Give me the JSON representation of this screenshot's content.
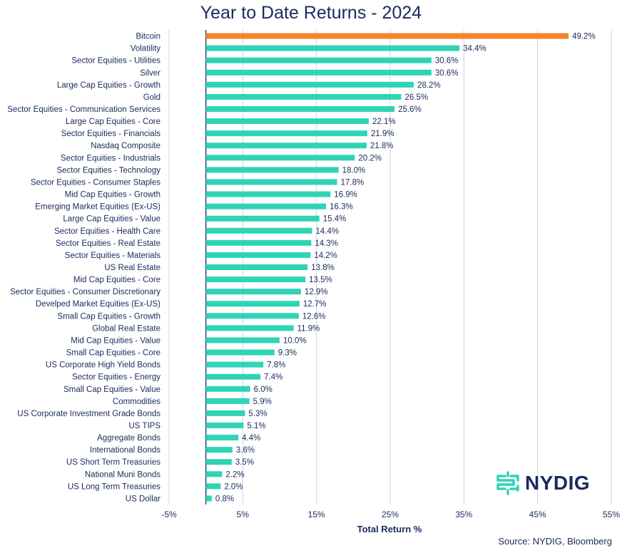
{
  "chart_data": {
    "type": "bar",
    "orientation": "horizontal",
    "title": "Year to Date Returns - 2024",
    "xlabel": "Total Return %",
    "xlim": [
      -5,
      55
    ],
    "xticks": [
      "-5%",
      "5%",
      "15%",
      "25%",
      "35%",
      "45%",
      "55%"
    ],
    "grid": true,
    "highlight_color": "#f5842b",
    "bar_color": "#2fd4b5",
    "categories": [
      "Bitcoin",
      "Volatility",
      "Sector Equities - Utilities",
      "Silver",
      "Large Cap Equities - Growth",
      "Gold",
      "Sector Equities - Communication Services",
      "Large Cap Equities - Core",
      "Sector Equities - Financials",
      "Nasdaq Composite",
      "Sector Equities - Industrials",
      "Sector Equities - Technology",
      "Sector Equities - Consumer Staples",
      "Mid Cap Equities - Growth",
      "Emerging Market Equities (Ex-US)",
      "Large Cap Equities - Value",
      "Sector Equities - Health Care",
      "Sector Equities - Real Estate",
      "Sector Equities - Materials",
      "US Real Estate",
      "Mid Cap Equities - Core",
      "Sector Equities - Consumer Discretionary",
      "Develped Market Equities (Ex-US)",
      "Small Cap Equities - Growth",
      "Global Real Estate",
      "Mid Cap Equities - Value",
      "Small Cap Equities - Core",
      "US Corporate High Yield Bonds",
      "Sector Equities - Energy",
      "Small Cap Equities - Value",
      "Commodities",
      "US Corporate Investment Grade Bonds",
      "US TIPS",
      "Aggregate Bonds",
      "International Bonds",
      "US Short Term Treasuries",
      "National Muni Bonds",
      "US Long Term Treasuries",
      "US Dollar"
    ],
    "values": [
      49.2,
      34.4,
      30.6,
      30.6,
      28.2,
      26.5,
      25.6,
      22.1,
      21.9,
      21.8,
      20.2,
      18.0,
      17.8,
      16.9,
      16.3,
      15.4,
      14.4,
      14.3,
      14.2,
      13.8,
      13.5,
      12.9,
      12.7,
      12.6,
      11.9,
      10.0,
      9.3,
      7.8,
      7.4,
      6.0,
      5.9,
      5.3,
      5.1,
      4.4,
      3.6,
      3.5,
      2.2,
      2.0,
      0.8
    ],
    "labels": [
      "49.2%",
      "34.4%",
      "30.6%",
      "30.6%",
      "28.2%",
      "26.5%",
      "25.6%",
      "22.1%",
      "21.9%",
      "21.8%",
      "20.2%",
      "18.0%",
      "17.8%",
      "16.9%",
      "16.3%",
      "15.4%",
      "14.4%",
      "14.3%",
      "14.2%",
      "13.8%",
      "13.5%",
      "12.9%",
      "12.7%",
      "12.6%",
      "11.9%",
      "10.0%",
      "9.3%",
      "7.8%",
      "7.4%",
      "6.0%",
      "5.9%",
      "5.3%",
      "5.1%",
      "4.4%",
      "3.6%",
      "3.5%",
      "2.2%",
      "2.0%",
      "0.8%"
    ]
  },
  "brand": {
    "name": "NYDIG",
    "color": "#2fd4b5"
  },
  "source": "Source: NYDIG, Bloomberg"
}
